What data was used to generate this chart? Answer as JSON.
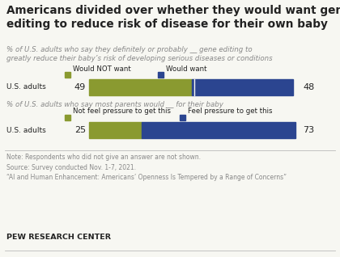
{
  "title": "Americans divided over whether they would want gene\nediting to reduce risk of disease for their own baby",
  "subtitle1": "% of U.S. adults who say they definitely or probably __ gene editing to\ngreatly reduce their baby’s risk of developing serious diseases or conditions",
  "subtitle2": "% of U.S. adults who say most parents would __ for their baby",
  "chart1": {
    "label": "U.S. adults",
    "values": [
      49,
      48
    ],
    "legend_labels": [
      "Would NOT want",
      "Would want"
    ]
  },
  "chart2": {
    "label": "U.S. adults",
    "values": [
      25,
      73
    ],
    "legend_labels": [
      "Not feel pressure to get this",
      "Feel pressure to get this"
    ]
  },
  "note": "Note: Respondents who did not give an answer are not shown.\nSource: Survey conducted Nov. 1-7, 2021.\n“AI and Human Enhancement: Americans’ Openness Is Tempered by a Range of Concerns”",
  "footer": "PEW RESEARCH CENTER",
  "bg_color": "#f7f7f2",
  "olive_color": "#8a9a30",
  "navy_color": "#2b4590",
  "text_dark": "#222222",
  "text_gray": "#888888",
  "title_fontsize": 9.8,
  "subtitle_fontsize": 6.2,
  "legend_fontsize": 6.2,
  "label_fontsize": 6.5,
  "value_fontsize": 8.0,
  "note_fontsize": 5.5,
  "footer_fontsize": 6.8
}
